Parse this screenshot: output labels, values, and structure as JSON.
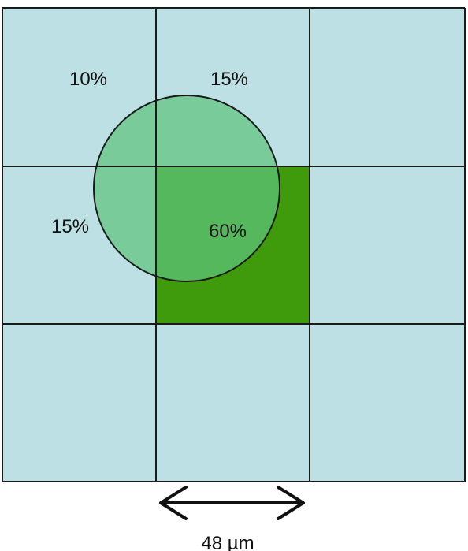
{
  "grid": {
    "rows": 3,
    "cols": 3,
    "cell_color": "#bce0e3",
    "highlight_cell": {
      "row": 1,
      "col": 1
    },
    "highlight_color": "#3f9b0b",
    "line_color": "#1a1a1a"
  },
  "spot": {
    "fill_color": "#5fc47d",
    "stroke_color": "#1a1a1a"
  },
  "labels": {
    "top_left": "10%",
    "top_center": "15%",
    "middle_left": "15%",
    "center": "60%"
  },
  "dimension": {
    "label": "48 µm"
  }
}
